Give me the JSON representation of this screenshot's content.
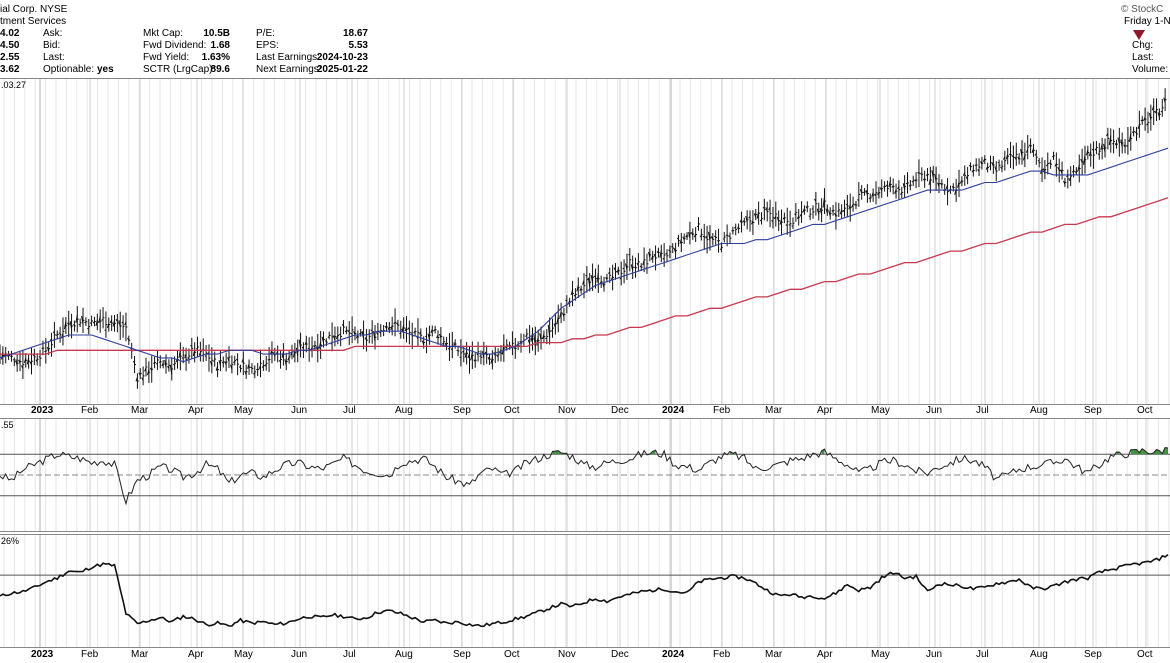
{
  "header": {
    "title": "ial Corp.  NYSE",
    "subtitle": "tment Services",
    "watermark": "© StockC",
    "date_label": "Friday 1-N",
    "left_values": [
      "4.02",
      "4.50",
      "2.55",
      "3.62"
    ],
    "left_labels": [
      "Ask:",
      "Bid:",
      "Last:",
      "Optionable:"
    ],
    "optionable_value": "yes",
    "mid_labels": [
      "Mkt Cap:",
      "Fwd Dividend:",
      "Fwd Yield:",
      "SCTR (LrgCap):"
    ],
    "mid_values": [
      "10.5B",
      "1.68",
      "1.63%",
      "89.6"
    ],
    "right_labels": [
      "P/E:",
      "EPS:",
      "Last Earnings:",
      "Next Earnings:"
    ],
    "right_values": [
      "18.67",
      "5.53",
      "2024-10-23",
      "2025-01-22"
    ],
    "far_right_labels": [
      "Chg:",
      "Last:",
      "Volume:"
    ],
    "down_color": "#8b1a2b"
  },
  "price_panel": {
    "label": ".03.27"
  },
  "rsi_panel": {
    "label": ".55"
  },
  "ppo_panel": {
    "label": "26%"
  },
  "x_axis_labels": [
    "2023",
    "Feb",
    "Mar",
    "Apr",
    "May",
    "Jun",
    "Jul",
    "Aug",
    "Sep",
    "Oct",
    "Nov",
    "Dec",
    "2024",
    "Feb",
    "Mar",
    "Apr",
    "May",
    "Jun",
    "Jul",
    "Aug",
    "Sep",
    "Oct"
  ],
  "chart_data": [
    {
      "type": "line",
      "series": [
        {
          "values": [
            61,
            60,
            59,
            60,
            62,
            66,
            69,
            70,
            69,
            70,
            69,
            68,
            55,
            57,
            59,
            58,
            60,
            62,
            61,
            58,
            60,
            58,
            57,
            59,
            61,
            60,
            62,
            63,
            64,
            66,
            67,
            66,
            65,
            67,
            69,
            68,
            66,
            65,
            67,
            64,
            62,
            60,
            61,
            59,
            62,
            63,
            66,
            64,
            67,
            71,
            76,
            79,
            82,
            80,
            82,
            85,
            84,
            87,
            86,
            89,
            92,
            94,
            91,
            90,
            93,
            95,
            97,
            98,
            97,
            96,
            98,
            99,
            100,
            98,
            99,
            102,
            103,
            104,
            105,
            104,
            107,
            108,
            106,
            104,
            106,
            110,
            111,
            109,
            112,
            113,
            115,
            110,
            112,
            107,
            108,
            113,
            115,
            117,
            116,
            119,
            122,
            124,
            128
          ]
        },
        {
          "values": [
            60,
            61,
            62,
            63,
            64,
            65,
            66,
            66,
            66,
            65,
            64,
            63,
            62,
            61,
            60,
            60,
            59,
            60,
            61,
            61,
            62,
            62,
            62,
            61,
            61,
            61,
            62,
            62,
            63,
            64,
            65,
            66,
            66,
            67,
            67,
            67,
            66,
            65,
            64,
            63,
            63,
            62,
            61,
            61,
            62,
            63,
            65,
            67,
            70,
            73,
            75,
            77,
            79,
            80,
            81,
            82,
            83,
            84,
            85,
            86,
            87,
            88,
            89,
            90,
            90,
            90,
            91,
            91,
            92,
            93,
            94,
            95,
            95,
            96,
            97,
            98,
            99,
            100,
            101,
            102,
            103,
            104,
            104,
            104,
            104,
            105,
            106,
            106,
            107,
            108,
            109,
            109,
            108,
            108,
            108,
            108,
            109,
            110,
            111,
            112,
            113,
            114,
            115
          ]
        },
        {
          "values": [
            61,
            61,
            61,
            61,
            61,
            62,
            62,
            62,
            62,
            62,
            62,
            62,
            62,
            62,
            62,
            62,
            62,
            62,
            62,
            62,
            62,
            62,
            62,
            62,
            62,
            62,
            62,
            62,
            62,
            62,
            62,
            63,
            63,
            63,
            63,
            63,
            63,
            63,
            63,
            63,
            63,
            63,
            63,
            63,
            63,
            63,
            63,
            64,
            64,
            64,
            65,
            65,
            66,
            66,
            67,
            68,
            68,
            69,
            70,
            71,
            71,
            72,
            73,
            73,
            74,
            75,
            76,
            76,
            77,
            78,
            78,
            79,
            80,
            80,
            81,
            82,
            82,
            83,
            84,
            85,
            85,
            86,
            87,
            88,
            88,
            89,
            90,
            90,
            91,
            92,
            93,
            93,
            94,
            95,
            95,
            96,
            97,
            97,
            98,
            99,
            100,
            101,
            102
          ]
        }
      ]
    },
    {
      "type": "line",
      "ylim": [
        0,
        100
      ],
      "series": [
        {
          "values": [
            50,
            45,
            55,
            60,
            65,
            70,
            68,
            66,
            62,
            64,
            60,
            25,
            45,
            50,
            58,
            55,
            48,
            52,
            60,
            56,
            42,
            50,
            52,
            48,
            55,
            60,
            62,
            58,
            56,
            60,
            66,
            60,
            54,
            52,
            50,
            62,
            64,
            66,
            58,
            48,
            44,
            40,
            52,
            56,
            50,
            54,
            62,
            66,
            70,
            72,
            68,
            60,
            58,
            62,
            64,
            66,
            70,
            72,
            70,
            60,
            58,
            55,
            62,
            68,
            70,
            66,
            56,
            58,
            60,
            64,
            66,
            70,
            72,
            66,
            60,
            52,
            56,
            62,
            64,
            60,
            54,
            52,
            58,
            62,
            66,
            64,
            58,
            46,
            50,
            56,
            58,
            60,
            62,
            66,
            58,
            52,
            60,
            68,
            70,
            72,
            74,
            72,
            76
          ]
        }
      ]
    },
    {
      "type": "line",
      "series": [
        {
          "values": [
            0.5,
            1.0,
            1.2,
            1.8,
            2.6,
            3.2,
            4.2,
            4.0,
            4.8,
            5.2,
            5.0,
            -2.0,
            -3.5,
            -3.0,
            -2.6,
            -3.2,
            -2.4,
            -2.8,
            -3.6,
            -3.4,
            -3.8,
            -3.0,
            -3.4,
            -3.2,
            -3.6,
            -3.4,
            -2.8,
            -2.4,
            -2.6,
            -2.2,
            -2.4,
            -2.8,
            -2.6,
            -1.8,
            -1.6,
            -2.0,
            -2.6,
            -3.2,
            -3.0,
            -3.4,
            -3.2,
            -3.6,
            -3.8,
            -3.5,
            -3.2,
            -2.8,
            -2.4,
            -1.8,
            -1.2,
            -0.6,
            -1.0,
            -0.4,
            0.2,
            -0.2,
            0.4,
            0.8,
            1.2,
            1.4,
            1.6,
            1.2,
            1.0,
            2.6,
            3.0,
            3.2,
            3.4,
            3.2,
            2.4,
            1.4,
            0.6,
            0.8,
            0.4,
            0.6,
            0.2,
            1.0,
            2.2,
            1.4,
            1.8,
            3.2,
            4.0,
            3.2,
            3.4,
            1.2,
            2.4,
            2.2,
            2.0,
            1.6,
            1.8,
            2.4,
            2.6,
            3.0,
            1.8,
            1.6,
            2.0,
            2.6,
            3.0,
            3.2,
            4.0,
            4.4,
            4.8,
            5.2,
            5.4,
            5.8,
            6.6
          ]
        }
      ]
    }
  ]
}
